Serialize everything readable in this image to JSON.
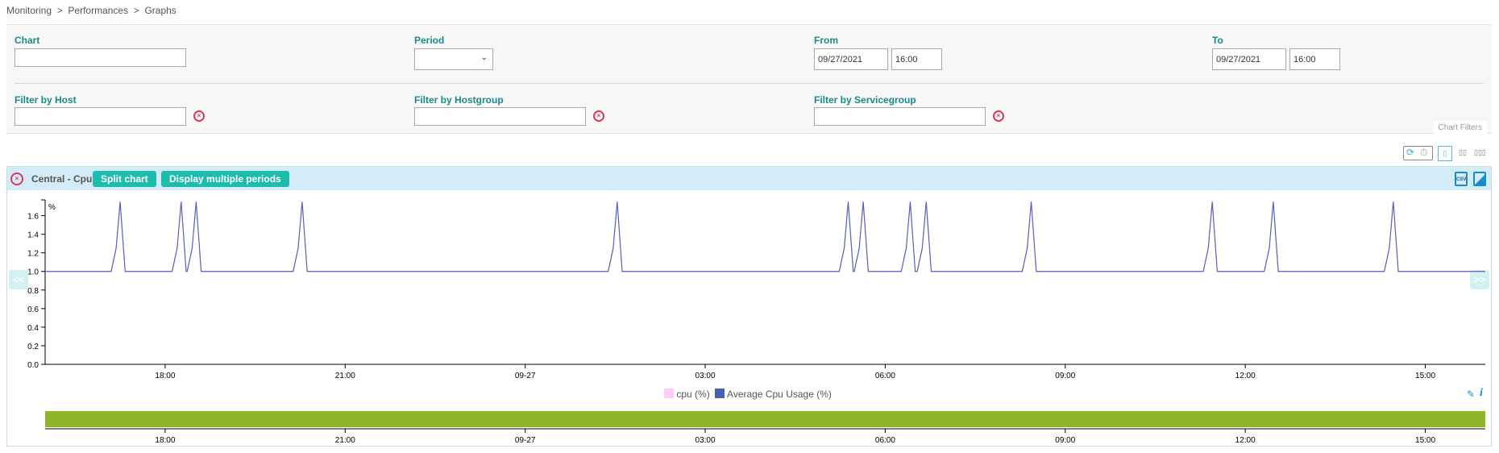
{
  "breadcrumb": [
    "Monitoring",
    ">",
    "Performances",
    ">",
    "Graphs"
  ],
  "filters": {
    "chart_label": "Chart",
    "chart_value": "",
    "period_label": "Period",
    "period_value": "",
    "from_label": "From",
    "from_date": "09/27/2021",
    "from_time": "16:00",
    "to_label": "To",
    "to_date": "09/27/2021",
    "to_time": "16:00",
    "host_label": "Filter by Host",
    "hostgroup_label": "Filter by Hostgroup",
    "servicegroup_label": "Filter by Servicegroup",
    "chart_filters_tab": "Chart Filters"
  },
  "toolbar": {
    "layout_1": "▯",
    "layout_2": "▯▯",
    "layout_3": "▯▯▯"
  },
  "chart_panel": {
    "title": "Central - Cpu",
    "split_label": "Split chart",
    "multi_label": "Display multiple periods",
    "prev": "<<",
    "next": ">>",
    "csv": "CSV"
  },
  "colors": {
    "accent": "#1ebcac",
    "series_avg": "#5560c0",
    "series_cpu": "#ffccf5",
    "navigator": "#8db52a",
    "header_bg": "#d3ecf7"
  },
  "chart_data": {
    "type": "line",
    "y_unit_label": "%",
    "ylim": [
      0,
      1.77
    ],
    "yticks": [
      "0.0",
      "0.2",
      "0.4",
      "0.6",
      "0.8",
      "1.0",
      "1.2",
      "1.4",
      "1.6"
    ],
    "xlim": [
      "2021-09-26 16:00",
      "2021-09-27 16:00"
    ],
    "xticks": [
      "18:00",
      "21:00",
      "09-27",
      "03:00",
      "06:00",
      "09:00",
      "12:00",
      "15:00"
    ],
    "baseline": 1.0,
    "peak_value": 1.75,
    "peak_times": [
      "2021-09-26 17:15",
      "2021-09-26 18:16",
      "2021-09-26 18:31",
      "2021-09-26 20:17",
      "2021-09-27 01:32",
      "2021-09-27 05:23",
      "2021-09-27 05:38",
      "2021-09-27 06:25",
      "2021-09-27 06:41",
      "2021-09-27 08:26",
      "2021-09-27 11:27",
      "2021-09-27 12:28",
      "2021-09-27 14:28"
    ],
    "series": [
      {
        "name": "cpu (%)"
      },
      {
        "name": "Average Cpu Usage (%)"
      }
    ]
  }
}
